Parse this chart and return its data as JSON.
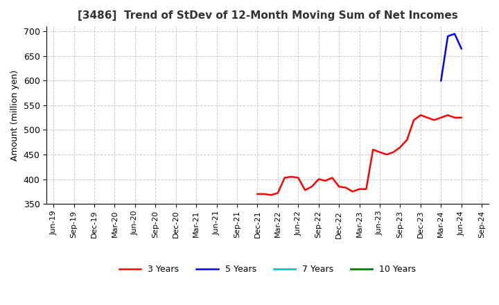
{
  "title": "[3486]  Trend of StDev of 12-Month Moving Sum of Net Incomes",
  "ylabel": "Amount (million yen)",
  "ylim": [
    350,
    710
  ],
  "yticks": [
    350,
    400,
    450,
    500,
    550,
    600,
    650,
    700
  ],
  "background_color": "#ffffff",
  "grid_color": "#cccccc",
  "series": {
    "3 Years": {
      "color": "#ff0000",
      "x": [
        30,
        31,
        32,
        33,
        34,
        35,
        36,
        37,
        38,
        39,
        40,
        41,
        42,
        43,
        44,
        45,
        46,
        47,
        48,
        49,
        50,
        51,
        52,
        53,
        54,
        55,
        56,
        57,
        58,
        59,
        60
      ],
      "y": [
        370,
        370,
        368,
        372,
        403,
        405,
        403,
        378,
        385,
        400,
        397,
        403,
        385,
        383,
        375,
        380,
        380,
        460,
        455,
        450,
        455,
        465,
        480,
        520,
        530,
        525,
        520,
        525,
        530,
        525,
        525
      ]
    },
    "5 Years": {
      "color": "#0000ff",
      "x": [
        57,
        58,
        59,
        60
      ],
      "y": [
        600,
        690,
        695,
        665
      ]
    },
    "7 Years": {
      "color": "#00cccc",
      "x": [],
      "y": []
    },
    "10 Years": {
      "color": "#008000",
      "x": [],
      "y": []
    }
  },
  "x_labels": [
    "Jun-19",
    "Sep-19",
    "Dec-19",
    "Mar-20",
    "Jun-20",
    "Sep-20",
    "Dec-20",
    "Mar-21",
    "Jun-21",
    "Sep-21",
    "Dec-21",
    "Mar-22",
    "Jun-22",
    "Sep-22",
    "Dec-22",
    "Mar-23",
    "Jun-23",
    "Sep-23",
    "Dec-23",
    "Mar-24",
    "Jun-24",
    "Sep-24"
  ],
  "x_tick_positions": [
    0,
    3,
    6,
    9,
    12,
    15,
    18,
    21,
    24,
    27,
    30,
    33,
    36,
    39,
    42,
    45,
    48,
    51,
    54,
    57,
    60,
    63
  ]
}
